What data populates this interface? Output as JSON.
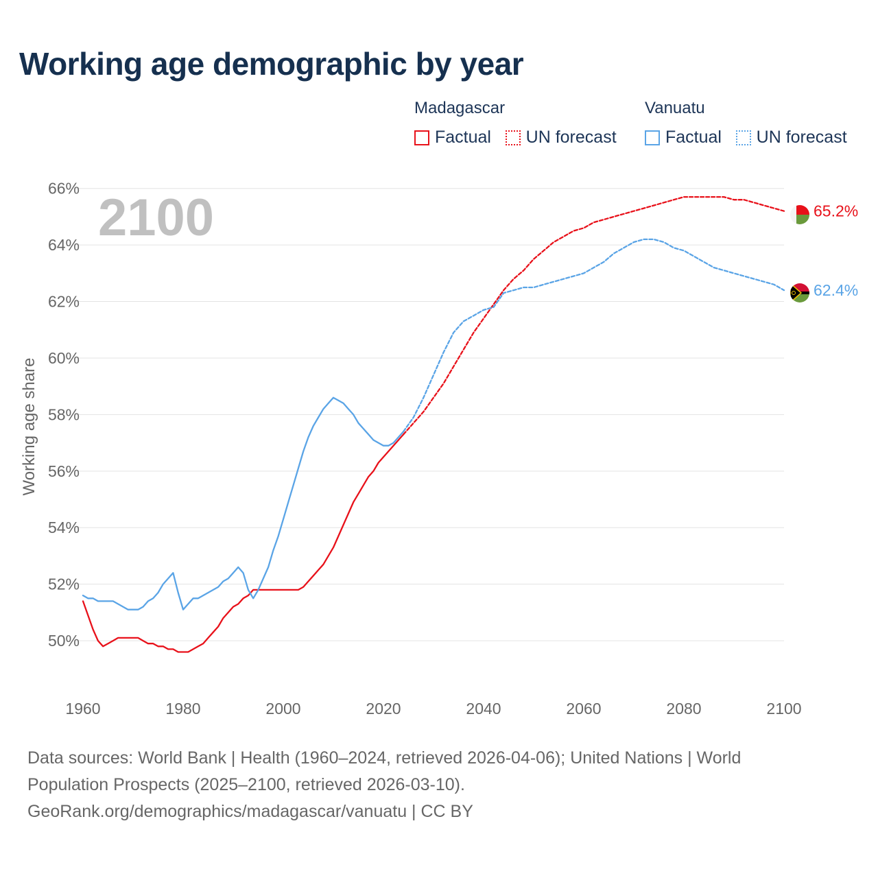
{
  "title": "Working age demographic by year",
  "footer": {
    "line1": "Data sources: World Bank | Health (1960–2024, retrieved 2026-04-06); United Nations | World",
    "line2": "Population Prospects (2025–2100, retrieved 2026-03-10).",
    "line3": "GeoRank.org/demographics/madagascar/vanuatu | CC BY"
  },
  "chart_data": {
    "type": "line",
    "title": "Working age demographic by year",
    "ylabel": "Working age share",
    "xlabel": "",
    "xlim": [
      1960,
      2100
    ],
    "ylim": [
      48.4,
      66.6
    ],
    "x_ticks": [
      1960,
      1980,
      2000,
      2020,
      2040,
      2060,
      2080,
      2100
    ],
    "x_tick_labels": [
      "1960",
      "1980",
      "2000",
      "2020",
      "2040",
      "2060",
      "2080",
      "2100"
    ],
    "y_ticks": [
      50,
      52,
      54,
      56,
      58,
      60,
      62,
      64,
      66
    ],
    "y_tick_labels": [
      "50%",
      "52%",
      "54%",
      "56%",
      "58%",
      "60%",
      "62%",
      "64%",
      "66%"
    ],
    "year_watermark": "2100",
    "legend": {
      "groups": [
        {
          "name": "Madagascar",
          "entries": [
            "Factual",
            "UN forecast"
          ]
        },
        {
          "name": "Vanuatu",
          "entries": [
            "Factual",
            "UN forecast"
          ]
        }
      ]
    },
    "series": [
      {
        "name": "Madagascar",
        "part": "Factual",
        "color": "#e8111a",
        "style": "solid",
        "x": [
          1960,
          1961,
          1962,
          1963,
          1964,
          1965,
          1966,
          1967,
          1968,
          1969,
          1970,
          1971,
          1972,
          1973,
          1974,
          1975,
          1976,
          1977,
          1978,
          1979,
          1980,
          1981,
          1982,
          1983,
          1984,
          1985,
          1986,
          1987,
          1988,
          1989,
          1990,
          1991,
          1992,
          1993,
          1994,
          1995,
          1996,
          1997,
          1998,
          1999,
          2000,
          2001,
          2002,
          2003,
          2004,
          2005,
          2006,
          2007,
          2008,
          2009,
          2010,
          2011,
          2012,
          2013,
          2014,
          2015,
          2016,
          2017,
          2018,
          2019,
          2020,
          2021,
          2022,
          2023,
          2024
        ],
        "values": [
          51.4,
          50.9,
          50.4,
          50.0,
          49.8,
          49.9,
          50.0,
          50.1,
          50.1,
          50.1,
          50.1,
          50.1,
          50.0,
          49.9,
          49.9,
          49.8,
          49.8,
          49.7,
          49.7,
          49.6,
          49.6,
          49.6,
          49.7,
          49.8,
          49.9,
          50.1,
          50.3,
          50.5,
          50.8,
          51.0,
          51.2,
          51.3,
          51.5,
          51.6,
          51.8,
          51.8,
          51.8,
          51.8,
          51.8,
          51.8,
          51.8,
          51.8,
          51.8,
          51.8,
          51.9,
          52.1,
          52.3,
          52.5,
          52.7,
          53.0,
          53.3,
          53.7,
          54.1,
          54.5,
          54.9,
          55.2,
          55.5,
          55.8,
          56.0,
          56.3,
          56.5,
          56.7,
          56.9,
          57.1,
          57.3
        ]
      },
      {
        "name": "Madagascar",
        "part": "UN forecast",
        "color": "#e8111a",
        "style": "dashed",
        "x": [
          2024,
          2026,
          2028,
          2030,
          2032,
          2034,
          2036,
          2038,
          2040,
          2042,
          2044,
          2046,
          2048,
          2050,
          2052,
          2054,
          2056,
          2058,
          2060,
          2062,
          2064,
          2066,
          2068,
          2070,
          2072,
          2074,
          2076,
          2078,
          2080,
          2082,
          2084,
          2086,
          2088,
          2090,
          2092,
          2094,
          2096,
          2098,
          2100
        ],
        "values": [
          57.3,
          57.7,
          58.1,
          58.6,
          59.1,
          59.7,
          60.3,
          60.9,
          61.4,
          61.9,
          62.4,
          62.8,
          63.1,
          63.5,
          63.8,
          64.1,
          64.3,
          64.5,
          64.6,
          64.8,
          64.9,
          65.0,
          65.1,
          65.2,
          65.3,
          65.4,
          65.5,
          65.6,
          65.7,
          65.7,
          65.7,
          65.7,
          65.7,
          65.6,
          65.6,
          65.5,
          65.4,
          65.3,
          65.2
        ]
      },
      {
        "name": "Vanuatu",
        "part": "Factual",
        "color": "#5aa4e6",
        "style": "solid",
        "x": [
          1960,
          1961,
          1962,
          1963,
          1964,
          1965,
          1966,
          1967,
          1968,
          1969,
          1970,
          1971,
          1972,
          1973,
          1974,
          1975,
          1976,
          1977,
          1978,
          1979,
          1980,
          1981,
          1982,
          1983,
          1984,
          1985,
          1986,
          1987,
          1988,
          1989,
          1990,
          1991,
          1992,
          1993,
          1994,
          1995,
          1996,
          1997,
          1998,
          1999,
          2000,
          2001,
          2002,
          2003,
          2004,
          2005,
          2006,
          2007,
          2008,
          2009,
          2010,
          2011,
          2012,
          2013,
          2014,
          2015,
          2016,
          2017,
          2018,
          2019,
          2020,
          2021,
          2022,
          2023,
          2024
        ],
        "values": [
          51.6,
          51.5,
          51.5,
          51.4,
          51.4,
          51.4,
          51.4,
          51.3,
          51.2,
          51.1,
          51.1,
          51.1,
          51.2,
          51.4,
          51.5,
          51.7,
          52.0,
          52.2,
          52.4,
          51.7,
          51.1,
          51.3,
          51.5,
          51.5,
          51.6,
          51.7,
          51.8,
          51.9,
          52.1,
          52.2,
          52.4,
          52.6,
          52.4,
          51.8,
          51.5,
          51.8,
          52.2,
          52.6,
          53.2,
          53.7,
          54.3,
          54.9,
          55.5,
          56.1,
          56.7,
          57.2,
          57.6,
          57.9,
          58.2,
          58.4,
          58.6,
          58.5,
          58.4,
          58.2,
          58.0,
          57.7,
          57.5,
          57.3,
          57.1,
          57.0,
          56.9,
          56.9,
          57.0,
          57.2,
          57.4
        ]
      },
      {
        "name": "Vanuatu",
        "part": "UN forecast",
        "color": "#5aa4e6",
        "style": "dashed",
        "x": [
          2024,
          2026,
          2028,
          2030,
          2032,
          2034,
          2036,
          2038,
          2040,
          2042,
          2044,
          2046,
          2048,
          2050,
          2052,
          2054,
          2056,
          2058,
          2060,
          2062,
          2064,
          2066,
          2068,
          2070,
          2072,
          2074,
          2076,
          2078,
          2080,
          2082,
          2084,
          2086,
          2088,
          2090,
          2092,
          2094,
          2096,
          2098,
          2100
        ],
        "values": [
          57.4,
          57.9,
          58.6,
          59.4,
          60.2,
          60.9,
          61.3,
          61.5,
          61.7,
          61.8,
          62.3,
          62.4,
          62.5,
          62.5,
          62.6,
          62.7,
          62.8,
          62.9,
          63.0,
          63.2,
          63.4,
          63.7,
          63.9,
          64.1,
          64.2,
          64.2,
          64.1,
          63.9,
          63.8,
          63.6,
          63.4,
          63.2,
          63.1,
          63.0,
          62.9,
          62.8,
          62.7,
          62.6,
          62.4
        ]
      }
    ],
    "end_labels": [
      {
        "country": "Madagascar",
        "value": 65.2,
        "label": "65.2%",
        "color": "#e8111a"
      },
      {
        "country": "Vanuatu",
        "value": 62.4,
        "label": "62.4%",
        "color": "#5aa4e6"
      }
    ]
  }
}
